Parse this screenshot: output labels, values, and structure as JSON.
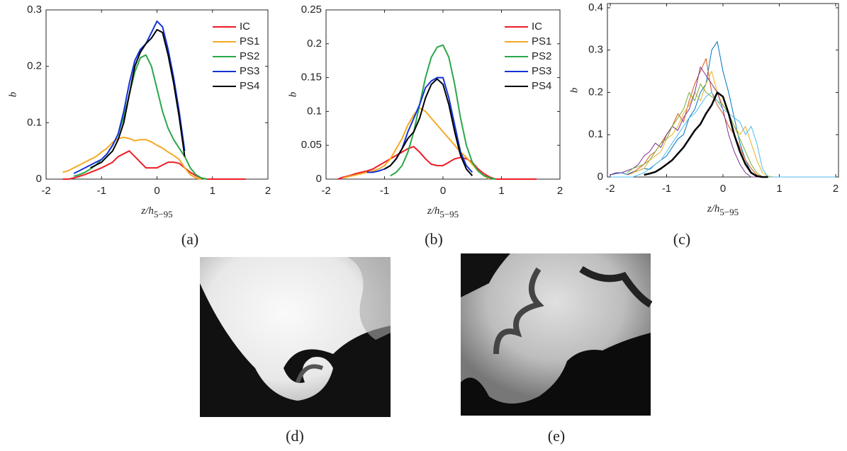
{
  "chart_data": [
    {
      "type": "line",
      "panel_label": "(a)",
      "ylabel": "b",
      "xlabel": "z/h",
      "xlabel_subscript": "5−95",
      "x": [
        -1.8,
        -1.7,
        -1.6,
        -1.5,
        -1.4,
        -1.3,
        -1.2,
        -1.1,
        -1.0,
        -0.9,
        -0.8,
        -0.7,
        -0.6,
        -0.5,
        -0.4,
        -0.3,
        -0.2,
        -0.1,
        0,
        0.1,
        0.2,
        0.3,
        0.4,
        0.5,
        0.6,
        0.7,
        0.8,
        0.9,
        1.0,
        1.1,
        1.2,
        1.3,
        1.4,
        1.5,
        1.6
      ],
      "series": [
        {
          "name": "IC",
          "color": "#ee1c25",
          "values": [
            null,
            0,
            0,
            0.002,
            0.005,
            0.008,
            0.012,
            0.016,
            0.02,
            0.025,
            0.03,
            0.04,
            0.045,
            0.05,
            0.04,
            0.03,
            0.02,
            0.02,
            0.02,
            0.025,
            0.03,
            0.03,
            0.028,
            0.02,
            0.012,
            0.006,
            0.002,
            0,
            0,
            0,
            0,
            0,
            0,
            0,
            0
          ]
        },
        {
          "name": "PS1",
          "color": "#f7a823",
          "values": [
            null,
            0.012,
            0.015,
            0.02,
            0.025,
            0.03,
            0.035,
            0.04,
            0.048,
            0.055,
            0.065,
            0.072,
            0.074,
            0.072,
            0.068,
            0.07,
            0.07,
            0.066,
            0.06,
            0.055,
            0.048,
            0.042,
            0.035,
            0.02,
            0.008,
            0.002,
            0,
            null,
            null,
            null,
            null,
            null,
            null,
            null,
            null
          ]
        },
        {
          "name": "PS2",
          "color": "#2aa748",
          "values": [
            null,
            null,
            null,
            0.005,
            0.008,
            0.012,
            0.018,
            0.025,
            0.035,
            0.045,
            0.06,
            0.08,
            0.11,
            0.15,
            0.19,
            0.215,
            0.22,
            0.2,
            0.16,
            0.12,
            0.09,
            0.07,
            0.055,
            0.04,
            0.02,
            0.008,
            0.002,
            0,
            null,
            null,
            null,
            null,
            null,
            null,
            null
          ]
        },
        {
          "name": "PS3",
          "color": "#1432d8",
          "values": [
            null,
            null,
            null,
            0.01,
            0.015,
            0.02,
            0.025,
            0.03,
            0.035,
            0.045,
            0.06,
            0.08,
            0.12,
            0.17,
            0.21,
            0.23,
            0.24,
            0.26,
            0.28,
            0.27,
            0.23,
            0.18,
            0.12,
            0.05,
            null,
            null,
            null,
            null,
            null,
            null,
            null,
            null,
            null,
            null,
            null
          ]
        },
        {
          "name": "PS4",
          "color": "#000000",
          "values": [
            null,
            null,
            null,
            null,
            null,
            null,
            0.02,
            0.025,
            0.03,
            0.04,
            0.05,
            0.07,
            0.1,
            0.15,
            0.2,
            0.225,
            0.24,
            0.25,
            0.265,
            0.26,
            0.22,
            0.17,
            0.11,
            0.04,
            null,
            null,
            null,
            null,
            null,
            null,
            null,
            null,
            null,
            null,
            null
          ]
        }
      ],
      "xlim": [
        -2,
        2
      ],
      "xticks": [
        -2,
        -1,
        0,
        1,
        2
      ],
      "ylim": [
        0,
        0.3
      ],
      "yticks": [
        0,
        0.1,
        0.2,
        0.3
      ],
      "legend": "upper right"
    },
    {
      "type": "line",
      "panel_label": "(b)",
      "ylabel": "b",
      "xlabel": "z/h",
      "xlabel_subscript": "5−95",
      "x": [
        -1.8,
        -1.7,
        -1.6,
        -1.5,
        -1.4,
        -1.3,
        -1.2,
        -1.1,
        -1.0,
        -0.9,
        -0.8,
        -0.7,
        -0.6,
        -0.5,
        -0.4,
        -0.3,
        -0.2,
        -0.1,
        0,
        0.1,
        0.2,
        0.3,
        0.4,
        0.5,
        0.6,
        0.7,
        0.8,
        0.9,
        1.0,
        1.1,
        1.2,
        1.3,
        1.4,
        1.5,
        1.6
      ],
      "series": [
        {
          "name": "IC",
          "color": "#ee1c25",
          "values": [
            0,
            0.003,
            0.005,
            0.008,
            0.01,
            0.012,
            0.015,
            0.02,
            0.025,
            0.03,
            0.035,
            0.04,
            0.045,
            0.048,
            0.04,
            0.03,
            0.022,
            0.02,
            0.02,
            0.025,
            0.03,
            0.032,
            0.03,
            0.025,
            0.015,
            0.008,
            0.003,
            0,
            0,
            0,
            0,
            0,
            0,
            0,
            0
          ]
        },
        {
          "name": "PS1",
          "color": "#f7a823",
          "values": [
            null,
            0.002,
            0.004,
            0.006,
            0.008,
            0.01,
            0.012,
            0.015,
            0.02,
            0.03,
            0.045,
            0.06,
            0.08,
            0.095,
            0.105,
            0.1,
            0.09,
            0.08,
            0.07,
            0.06,
            0.05,
            0.04,
            0.032,
            0.022,
            0.012,
            0.005,
            0,
            null,
            null,
            null,
            null,
            null,
            null,
            null,
            null
          ]
        },
        {
          "name": "PS2",
          "color": "#2aa748",
          "values": [
            null,
            null,
            null,
            null,
            null,
            null,
            null,
            null,
            null,
            0.005,
            0.01,
            0.02,
            0.04,
            0.07,
            0.11,
            0.15,
            0.18,
            0.195,
            0.198,
            0.18,
            0.14,
            0.09,
            0.05,
            0.025,
            0.012,
            0.005,
            0.002,
            0,
            null,
            null,
            null,
            null,
            null,
            null,
            null
          ]
        },
        {
          "name": "PS3",
          "color": "#1432d8",
          "values": [
            null,
            null,
            null,
            null,
            null,
            0.01,
            0.01,
            0.012,
            0.015,
            0.02,
            0.03,
            0.045,
            0.07,
            0.09,
            0.11,
            0.135,
            0.145,
            0.15,
            0.15,
            0.12,
            0.08,
            0.04,
            0.02,
            0.01,
            null,
            null,
            null,
            null,
            null,
            null,
            null,
            null,
            null,
            null,
            null
          ]
        },
        {
          "name": "PS4",
          "color": "#000000",
          "values": [
            null,
            null,
            null,
            null,
            null,
            null,
            null,
            null,
            0.015,
            0.02,
            0.03,
            0.045,
            0.06,
            0.07,
            0.09,
            0.12,
            0.14,
            0.148,
            0.14,
            0.11,
            0.07,
            0.035,
            0.015,
            0.005,
            null,
            null,
            null,
            null,
            null,
            null,
            null,
            null,
            null,
            null,
            null
          ]
        }
      ],
      "xlim": [
        -2,
        2
      ],
      "xticks": [
        -2,
        -1,
        0,
        1,
        2
      ],
      "ylim": [
        0,
        0.25
      ],
      "yticks": [
        0,
        0.05,
        0.1,
        0.15,
        0.2,
        0.25
      ],
      "legend": "upper right"
    },
    {
      "type": "line",
      "panel_label": "(c)",
      "ylabel": "b",
      "xlabel": "z/h",
      "xlabel_subscript": "5−95",
      "x": [
        -2.0,
        -1.9,
        -1.8,
        -1.7,
        -1.6,
        -1.5,
        -1.4,
        -1.3,
        -1.2,
        -1.1,
        -1.0,
        -0.9,
        -0.8,
        -0.7,
        -0.6,
        -0.5,
        -0.4,
        -0.3,
        -0.2,
        -0.1,
        0,
        0.1,
        0.2,
        0.3,
        0.4,
        0.5,
        0.6,
        0.7,
        0.8,
        0.9,
        1.0,
        1.1,
        1.2,
        1.3,
        1.4,
        1.5,
        1.6,
        1.7,
        1.8,
        1.9,
        2.0
      ],
      "series": [
        {
          "color": "#0072bd",
          "width": 1,
          "values": [
            0.005,
            0.008,
            0.01,
            0.006,
            0.012,
            0.015,
            0.02,
            0.018,
            0.03,
            0.04,
            0.05,
            0.07,
            0.09,
            0.1,
            0.14,
            0.16,
            0.2,
            0.22,
            0.3,
            0.32,
            0.25,
            0.2,
            0.14,
            0.08,
            0.04,
            0.01,
            0,
            0,
            0,
            0,
            0,
            0,
            0,
            0,
            0,
            0,
            0,
            0,
            0,
            0,
            0
          ]
        },
        {
          "color": "#d95319",
          "width": 1,
          "values": [
            null,
            null,
            null,
            0.005,
            0.01,
            0.02,
            0.03,
            0.05,
            0.06,
            0.08,
            0.1,
            0.12,
            0.15,
            0.13,
            0.18,
            0.22,
            0.25,
            0.28,
            0.2,
            0.17,
            0.15,
            0.12,
            0.1,
            0.07,
            0.04,
            0.02,
            0.005,
            0,
            null,
            null,
            null,
            null,
            null,
            null,
            null,
            null,
            null,
            null,
            null,
            null,
            null
          ]
        },
        {
          "color": "#edb120",
          "width": 1,
          "values": [
            null,
            null,
            null,
            null,
            0.01,
            0.015,
            0.02,
            0.04,
            0.05,
            0.06,
            0.09,
            0.1,
            0.12,
            0.15,
            0.17,
            0.2,
            0.18,
            0.22,
            0.25,
            0.2,
            0.17,
            0.15,
            0.12,
            0.1,
            0.12,
            0.08,
            0.04,
            0.01,
            0.002,
            0,
            null,
            null,
            null,
            null,
            null,
            null,
            null,
            null,
            null,
            null,
            null
          ]
        },
        {
          "color": "#7e2f8e",
          "width": 1,
          "values": [
            0.005,
            0.01,
            0.01,
            0.015,
            0.02,
            0.03,
            0.05,
            0.06,
            0.08,
            0.07,
            0.1,
            0.12,
            0.11,
            0.14,
            0.16,
            0.2,
            0.26,
            0.24,
            0.22,
            0.2,
            0.16,
            0.1,
            0.06,
            0.03,
            0.01,
            0,
            0,
            0,
            0,
            0,
            0,
            0,
            0,
            0,
            0,
            0,
            0,
            0,
            0,
            0,
            0
          ]
        },
        {
          "color": "#77ac30",
          "width": 1,
          "values": [
            null,
            null,
            null,
            0.01,
            0.02,
            0.025,
            0.03,
            0.04,
            0.06,
            0.08,
            0.09,
            0.12,
            0.14,
            0.16,
            0.2,
            0.18,
            0.22,
            0.2,
            0.19,
            0.18,
            0.17,
            0.15,
            0.12,
            0.09,
            0.06,
            0.03,
            0.01,
            0,
            null,
            null,
            null,
            null,
            null,
            null,
            null,
            null,
            null,
            null,
            null,
            null,
            null
          ]
        },
        {
          "color": "#4dbeee",
          "width": 1,
          "values": [
            0,
            0,
            0,
            0,
            0,
            0.005,
            0.01,
            0.02,
            0.03,
            0.04,
            0.06,
            0.08,
            0.1,
            0.12,
            0.14,
            0.15,
            0.17,
            0.19,
            0.2,
            0.18,
            0.16,
            0.15,
            0.14,
            0.13,
            0.1,
            0.12,
            0.08,
            0.02,
            0,
            0,
            0,
            0,
            0,
            0,
            0,
            0,
            0,
            0,
            0,
            0,
            0
          ]
        },
        {
          "color": "#000000",
          "width": 2.5,
          "values": [
            null,
            null,
            null,
            null,
            null,
            null,
            0.005,
            0.008,
            0.012,
            0.02,
            0.03,
            0.04,
            0.055,
            0.07,
            0.09,
            0.11,
            0.125,
            0.15,
            0.17,
            0.2,
            0.19,
            0.15,
            0.1,
            0.06,
            0.03,
            0.01,
            0.002,
            0,
            0,
            null,
            null,
            null,
            null,
            null,
            null,
            null,
            null,
            null,
            null,
            null,
            null
          ]
        }
      ],
      "xlim": [
        -2.05,
        2.05
      ],
      "xticks": [
        -2,
        -1,
        0,
        1,
        2
      ],
      "ylim": [
        0,
        0.41
      ],
      "yticks": [
        0,
        0.1,
        0.2,
        0.3,
        0.4
      ]
    }
  ],
  "images": [
    {
      "label": "(d)"
    },
    {
      "label": "(e)"
    }
  ]
}
